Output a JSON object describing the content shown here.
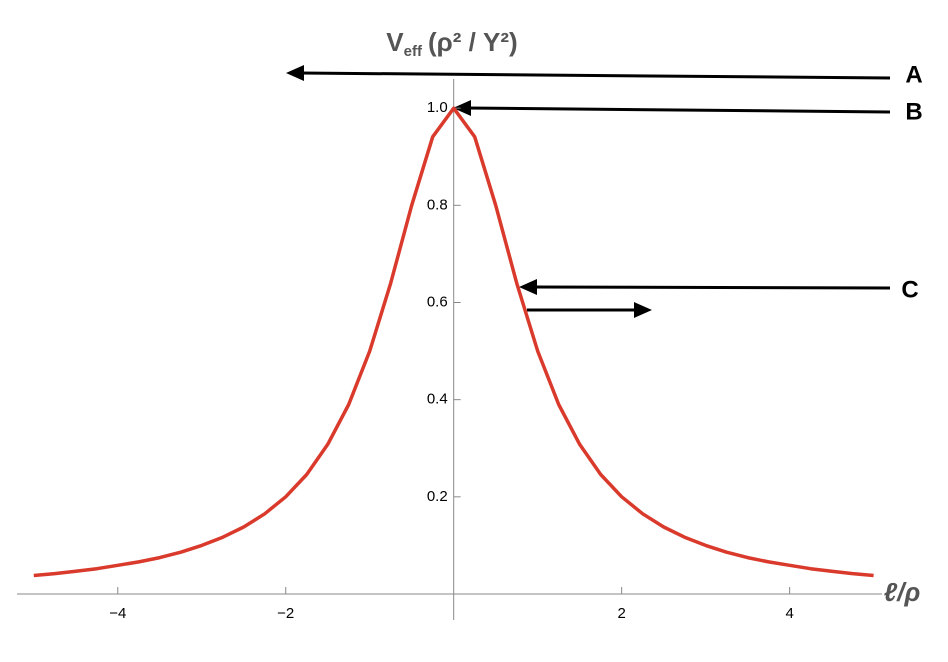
{
  "chart_data": {
    "type": "line",
    "y_label": {
      "base": "V",
      "sub": "eff",
      "rest": "(ρ² / Y²)"
    },
    "x_label": "ℓ/ρ",
    "annotations": [
      "A",
      "B",
      "C"
    ],
    "x": [
      -5,
      -4.75,
      -4.5,
      -4.25,
      -4,
      -3.75,
      -3.5,
      -3.25,
      -3,
      -2.75,
      -2.5,
      -2.25,
      -2,
      -1.75,
      -1.5,
      -1.25,
      -1,
      -0.75,
      -0.5,
      -0.25,
      0,
      0.25,
      0.5,
      0.75,
      1,
      1.25,
      1.5,
      1.75,
      2,
      2.25,
      2.5,
      2.75,
      3,
      3.25,
      3.5,
      3.75,
      4,
      4.25,
      4.5,
      4.75,
      5
    ],
    "series": [
      {
        "color": "#d93a2b",
        "values": [
          0.038,
          0.042,
          0.047,
          0.052,
          0.059,
          0.066,
          0.075,
          0.086,
          0.1,
          0.117,
          0.138,
          0.165,
          0.2,
          0.246,
          0.308,
          0.39,
          0.5,
          0.64,
          0.8,
          0.941,
          1,
          0.941,
          0.8,
          0.64,
          0.5,
          0.39,
          0.308,
          0.246,
          0.2,
          0.165,
          0.138,
          0.117,
          0.1,
          0.086,
          0.075,
          0.066,
          0.059,
          0.052,
          0.047,
          0.042,
          0.038
        ]
      }
    ],
    "xlim": [
      -5.2,
      5.1
    ],
    "ylim": [
      0,
      1.06
    ],
    "xticks": [
      {
        "value": -4,
        "label": "−4"
      },
      {
        "value": -2,
        "label": "−2"
      },
      2,
      4
    ],
    "yticks": [
      0.2,
      0.4,
      0.6,
      0.8,
      {
        "value": 1,
        "label": "1.0"
      }
    ]
  }
}
